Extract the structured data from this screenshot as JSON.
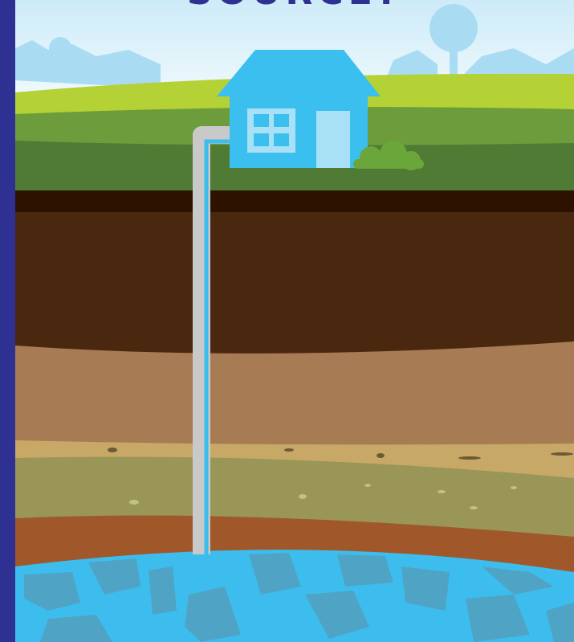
{
  "heading": "SOURCE?"
}
